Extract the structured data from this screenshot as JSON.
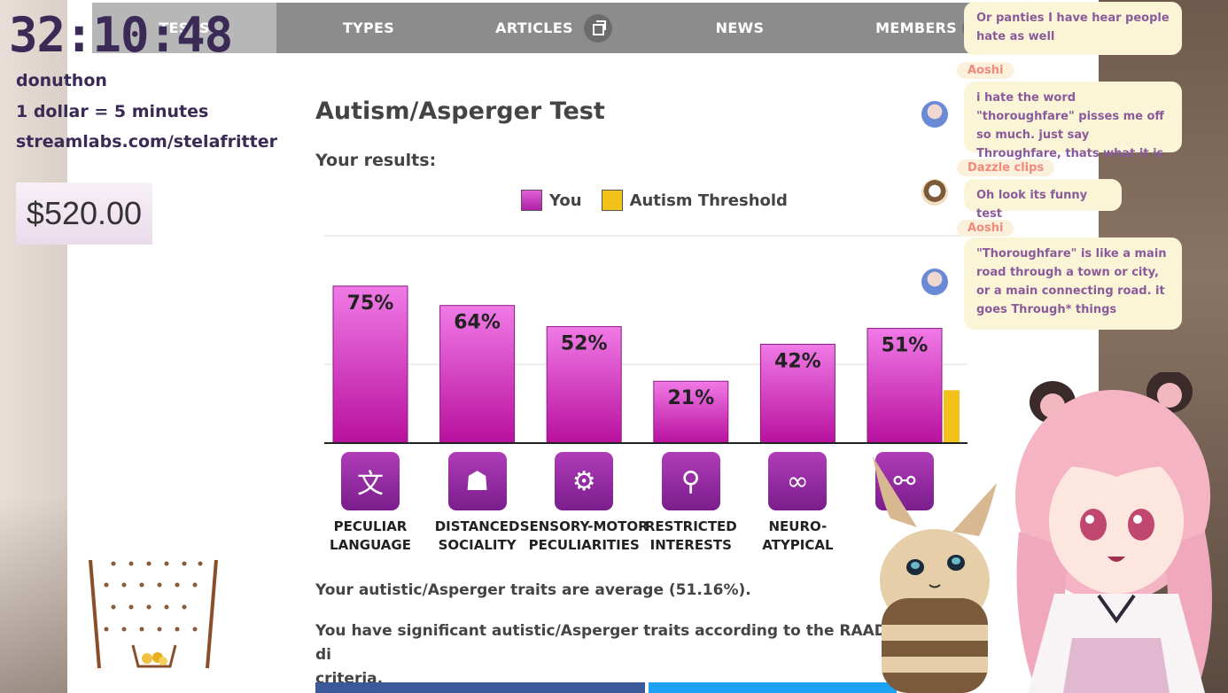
{
  "stream": {
    "timer": "32:10:48",
    "line1": "donuthon",
    "line2": "1 dollar = 5 minutes",
    "line3": "streamlabs.com/stelafritter",
    "total": "$520.00"
  },
  "nav": {
    "items": [
      "TESTS",
      "TYPES",
      "ARTICLES",
      "NEWS",
      "MEMBERS"
    ]
  },
  "page": {
    "title": "Autism/Asperger Test",
    "results_label": "Your results:",
    "legend_you": "You",
    "legend_threshold": "Autism Threshold",
    "summary": "Your autistic/Asperger traits are average (51.16%).",
    "significant": "You have significant autistic/Asperger traits according to the RAADS di",
    "significant_cont": "criteria."
  },
  "chart_data": {
    "type": "bar",
    "categories": [
      "PECULIAR LANGUAGE",
      "DISTANCED SOCIALITY",
      "SENSORY-MOTOR PECULIARITIES",
      "RESTRICTED INTERESTS",
      "NEURO-ATYPICAL",
      ""
    ],
    "series": [
      {
        "name": "You",
        "values": [
          75,
          64,
          52,
          21,
          42,
          51
        ]
      },
      {
        "name": "Autism Threshold",
        "values": [
          null,
          null,
          null,
          null,
          null,
          28
        ]
      }
    ],
    "value_labels": [
      "75%",
      "64%",
      "52%",
      "21%",
      "42%",
      "51%"
    ],
    "ylim": [
      0,
      100
    ],
    "grid": true,
    "legend": "top",
    "colors": {
      "you": "#c838c0",
      "threshold": "#f2c21a"
    }
  },
  "chat": [
    {
      "name": "",
      "text": "Or panties I have hear people hate as well"
    },
    {
      "name": "Aoshi",
      "text": "i hate the word \"thoroughfare\" pisses me off so much. just say Throughfare, thats what it is"
    },
    {
      "name": "Dazzle clips",
      "text": "Oh look its funny test"
    },
    {
      "name": "Aoshi",
      "text": "\"Thoroughfare\" is like a main road through a town or city, or a main connecting road. it goes Through* things"
    }
  ]
}
